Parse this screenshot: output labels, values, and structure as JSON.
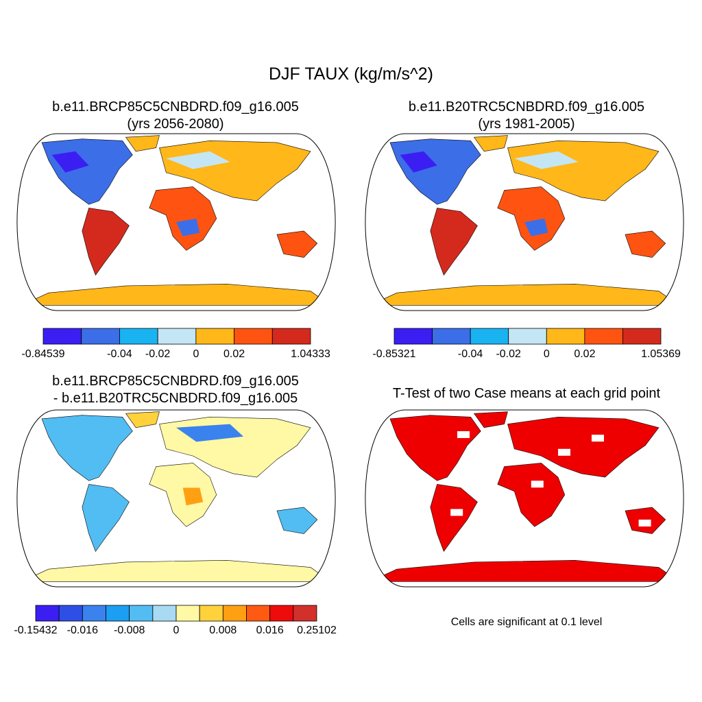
{
  "main_title": "DJF TAUX (kg/m/s^2)",
  "panels": [
    {
      "title_line1": "b.e11.BRCP85C5CNBDRD.f09_g16.005",
      "title_line2": "(yrs 2056-2080)",
      "colorbar": {
        "colors": [
          "#3b1ff2",
          "#3c6ee8",
          "#1ab3f2",
          "#c4e6f4",
          "#ffb71a",
          "#ff5411",
          "#d42a1e"
        ],
        "labels": [
          "-0.84539",
          "-0.04",
          "-0.02",
          "0",
          "0.02",
          "1.04333"
        ]
      }
    },
    {
      "title_line1": "b.e11.B20TRC5CNBDRD.f09_g16.005",
      "title_line2": "(yrs 1981-2005)",
      "colorbar": {
        "colors": [
          "#3b1ff2",
          "#3c6ee8",
          "#1ab3f2",
          "#c4e6f4",
          "#ffb71a",
          "#ff5411",
          "#d42a1e"
        ],
        "labels": [
          "-0.85321",
          "-0.04",
          "-0.02",
          "0",
          "0.02",
          "1.05369"
        ]
      }
    },
    {
      "title_line1": "b.e11.BRCP85C5CNBDRD.f09_g16.005",
      "title_line2": "- b.e11.B20TRC5CNBDRD.f09_g16.005",
      "colorbar": {
        "colors": [
          "#3b1ff2",
          "#2d4fe6",
          "#3a82ee",
          "#1c9ef2",
          "#52bdf3",
          "#a9daf3",
          "#fff8a4",
          "#ffd23c",
          "#ff9f12",
          "#ff5a12",
          "#ee0b0b",
          "#d2302b"
        ],
        "labels": [
          "-0.15432",
          "-0.016",
          "-0.008",
          "0",
          "0.008",
          "0.016",
          "0.25102"
        ]
      }
    },
    {
      "title_line1": "T-Test of two Case means at each grid point",
      "footnote": "Cells are significant at 0.1 level",
      "sig_color": "#ee0000"
    }
  ]
}
